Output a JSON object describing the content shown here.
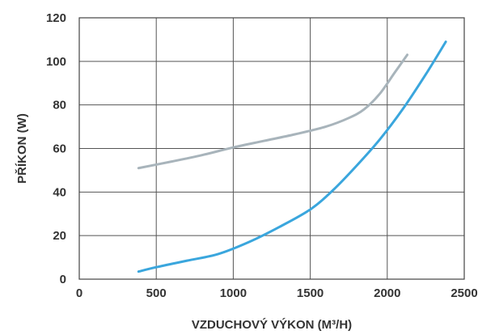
{
  "chart_data": {
    "type": "line",
    "title": "",
    "xlabel": "VZDUCHOVÝ VÝKON (M³/H)",
    "ylabel": "PŘÍKON (W)",
    "xlim": [
      0,
      2500
    ],
    "ylim": [
      0,
      120
    ],
    "x_ticks": [
      "0",
      "500",
      "1000",
      "1500",
      "2000",
      "2500"
    ],
    "y_ticks": [
      "0",
      "20",
      "40",
      "60",
      "80",
      "100",
      "120"
    ],
    "x_tick_values": [
      0,
      500,
      1000,
      1500,
      2000,
      2500
    ],
    "y_tick_values": [
      0,
      20,
      40,
      60,
      80,
      100,
      120
    ],
    "grid": true,
    "legend": "none",
    "series": [
      {
        "color": "#a8b4bb",
        "x": [
          385,
          600,
          800,
          1000,
          1200,
          1400,
          1600,
          1750,
          1850,
          1950,
          2050,
          2130
        ],
        "y": [
          51,
          54,
          57,
          60.5,
          63.5,
          66.5,
          70,
          74,
          78,
          85,
          95,
          103
        ]
      },
      {
        "color": "#3aa6dd",
        "x": [
          385,
          500,
          700,
          900,
          1100,
          1300,
          1500,
          1650,
          1800,
          1950,
          2100,
          2250,
          2380
        ],
        "y": [
          3.5,
          5.5,
          8.5,
          11.5,
          17,
          24,
          32,
          41,
          52,
          64,
          78,
          94,
          109
        ]
      }
    ]
  }
}
